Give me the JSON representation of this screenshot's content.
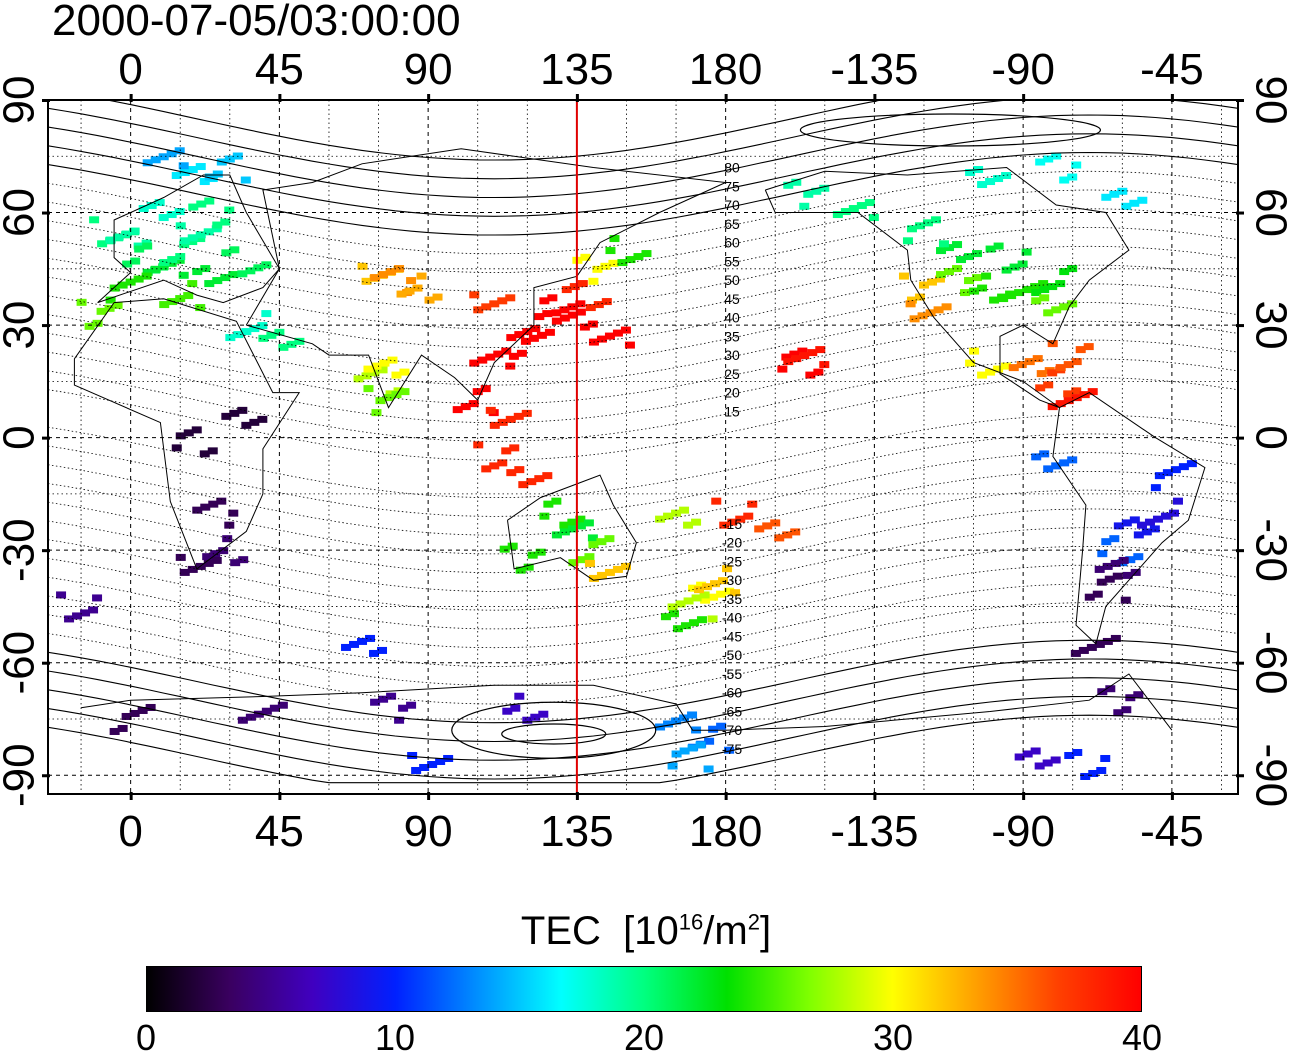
{
  "timestamp": "2000-07-05/03:00:00",
  "map": {
    "top_lon_labels": [
      "0",
      "45",
      "90",
      "135",
      "180",
      "-135",
      "-90",
      "-45"
    ],
    "bottom_lon_labels": [
      "0",
      "45",
      "90",
      "135",
      "180",
      "-135",
      "-90",
      "-45"
    ],
    "left_lat_labels": [
      "90",
      "60",
      "30",
      "0",
      "-30",
      "-60",
      "-90"
    ],
    "right_lat_labels": [
      "90",
      "60",
      "30",
      "0",
      "-30",
      "-60",
      "-90"
    ],
    "meridian_marker_lon": 135,
    "marker_color": "#e00000",
    "contour_labels_north": [
      "80",
      "75",
      "70",
      "65",
      "60",
      "55",
      "50",
      "45",
      "40",
      "35",
      "30",
      "25",
      "20",
      "15"
    ],
    "contour_labels_south": [
      "-15",
      "-20",
      "-25",
      "-30",
      "-35",
      "-40",
      "-45",
      "-50",
      "-55",
      "-60",
      "-65",
      "-70",
      "-75"
    ]
  },
  "colorbar": {
    "title": "TEC",
    "unit_prefix": "[10",
    "unit_exp": "16",
    "unit_mid": "/m",
    "unit_exp2": "2",
    "unit_suffix": "]",
    "min": 0,
    "max": 40,
    "tick_labels": [
      "0",
      "10",
      "20",
      "30",
      "40"
    ],
    "colors": [
      "#000000",
      "#3a0060",
      "#4000c0",
      "#0020ff",
      "#0090ff",
      "#00ffff",
      "#00ff80",
      "#00e000",
      "#80ff00",
      "#ffff00",
      "#ffa000",
      "#ff4000",
      "#ff0000"
    ]
  },
  "observations": [
    {
      "lat": 55,
      "lon": -5,
      "tec": 20
    },
    {
      "lat": 52,
      "lon": 0,
      "tec": 19
    },
    {
      "lat": 48,
      "lon": 5,
      "tec": 21
    },
    {
      "lat": 45,
      "lon": 10,
      "tec": 22
    },
    {
      "lat": 50,
      "lon": 15,
      "tec": 20
    },
    {
      "lat": 55,
      "lon": 20,
      "tec": 19
    },
    {
      "lat": 60,
      "lon": 25,
      "tec": 20
    },
    {
      "lat": 62,
      "lon": 10,
      "tec": 18
    },
    {
      "lat": 40,
      "lon": 0,
      "tec": 24
    },
    {
      "lat": 38,
      "lon": 15,
      "tec": 25
    },
    {
      "lat": 42,
      "lon": 25,
      "tec": 22
    },
    {
      "lat": 47,
      "lon": 35,
      "tec": 21
    },
    {
      "lat": 70,
      "lon": 20,
      "tec": 16
    },
    {
      "lat": 72,
      "lon": 30,
      "tec": 15
    },
    {
      "lat": 75,
      "lon": 10,
      "tec": 14
    },
    {
      "lat": 33,
      "lon": -10,
      "tec": 26
    },
    {
      "lat": 45,
      "lon": 75,
      "tec": 32
    },
    {
      "lat": 42,
      "lon": 80,
      "tec": 34
    },
    {
      "lat": 40,
      "lon": 88,
      "tec": 33
    },
    {
      "lat": 35,
      "lon": 110,
      "tec": 37
    },
    {
      "lat": 30,
      "lon": 120,
      "tec": 40
    },
    {
      "lat": 35,
      "lon": 130,
      "tec": 40
    },
    {
      "lat": 38,
      "lon": 138,
      "tec": 38
    },
    {
      "lat": 32,
      "lon": 135,
      "tec": 40
    },
    {
      "lat": 25,
      "lon": 122,
      "tec": 40
    },
    {
      "lat": 28,
      "lon": 145,
      "tec": 40
    },
    {
      "lat": 45,
      "lon": 140,
      "tec": 30
    },
    {
      "lat": 50,
      "lon": 150,
      "tec": 24
    },
    {
      "lat": 20,
      "lon": 110,
      "tec": 40
    },
    {
      "lat": 10,
      "lon": 105,
      "tec": 40
    },
    {
      "lat": 5,
      "lon": 115,
      "tec": 38
    },
    {
      "lat": -5,
      "lon": 110,
      "tec": 38
    },
    {
      "lat": -10,
      "lon": 120,
      "tec": 38
    },
    {
      "lat": 15,
      "lon": 75,
      "tec": 28
    },
    {
      "lat": 20,
      "lon": 78,
      "tec": 30
    },
    {
      "lat": 10,
      "lon": 78,
      "tec": 26
    },
    {
      "lat": 30,
      "lon": 35,
      "tec": 18
    },
    {
      "lat": 25,
      "lon": 45,
      "tec": 20
    },
    {
      "lat": -20,
      "lon": 130,
      "tec": 24
    },
    {
      "lat": -25,
      "lon": 135,
      "tec": 22
    },
    {
      "lat": -30,
      "lon": 140,
      "tec": 26
    },
    {
      "lat": -35,
      "lon": 145,
      "tec": 32
    },
    {
      "lat": -32,
      "lon": 118,
      "tec": 24
    },
    {
      "lat": -40,
      "lon": 175,
      "tec": 30
    },
    {
      "lat": -45,
      "lon": 170,
      "tec": 28
    },
    {
      "lat": -38,
      "lon": 178,
      "tec": 32
    },
    {
      "lat": -50,
      "lon": 168,
      "tec": 24
    },
    {
      "lat": -20,
      "lon": -178,
      "tec": 38
    },
    {
      "lat": -25,
      "lon": -165,
      "tec": 36
    },
    {
      "lat": 20,
      "lon": -158,
      "tec": 40
    },
    {
      "lat": 22,
      "lon": -155,
      "tec": 39
    },
    {
      "lat": 40,
      "lon": -120,
      "tec": 32
    },
    {
      "lat": 35,
      "lon": -118,
      "tec": 34
    },
    {
      "lat": 42,
      "lon": -110,
      "tec": 26
    },
    {
      "lat": 40,
      "lon": -100,
      "tec": 24
    },
    {
      "lat": 38,
      "lon": -90,
      "tec": 24
    },
    {
      "lat": 42,
      "lon": -80,
      "tec": 23
    },
    {
      "lat": 35,
      "lon": -80,
      "tec": 26
    },
    {
      "lat": 48,
      "lon": -95,
      "tec": 22
    },
    {
      "lat": 50,
      "lon": -110,
      "tec": 22
    },
    {
      "lat": 55,
      "lon": -120,
      "tec": 20
    },
    {
      "lat": 62,
      "lon": -140,
      "tec": 20
    },
    {
      "lat": 65,
      "lon": -155,
      "tec": 19
    },
    {
      "lat": 20,
      "lon": -100,
      "tec": 30
    },
    {
      "lat": 18,
      "lon": -88,
      "tec": 35
    },
    {
      "lat": 15,
      "lon": -80,
      "tec": 37
    },
    {
      "lat": 10,
      "lon": -75,
      "tec": 39
    },
    {
      "lat": 22,
      "lon": -75,
      "tec": 36
    },
    {
      "lat": 70,
      "lon": -100,
      "tec": 18
    },
    {
      "lat": 72,
      "lon": -80,
      "tec": 17
    },
    {
      "lat": 65,
      "lon": -60,
      "tec": 16
    },
    {
      "lat": -10,
      "lon": -45,
      "tec": 10
    },
    {
      "lat": -20,
      "lon": -48,
      "tec": 8
    },
    {
      "lat": -25,
      "lon": -55,
      "tec": 9
    },
    {
      "lat": -30,
      "lon": -60,
      "tec": 12
    },
    {
      "lat": -35,
      "lon": -62,
      "tec": 4
    },
    {
      "lat": -40,
      "lon": -65,
      "tec": 3
    },
    {
      "lat": -55,
      "lon": -68,
      "tec": 3
    },
    {
      "lat": -70,
      "lon": -60,
      "tec": 4
    },
    {
      "lat": -5,
      "lon": -80,
      "tec": 12
    },
    {
      "lat": -20,
      "lon": 25,
      "tec": 3
    },
    {
      "lat": -30,
      "lon": 28,
      "tec": 4
    },
    {
      "lat": -35,
      "lon": 20,
      "tec": 3
    },
    {
      "lat": -45,
      "lon": -15,
      "tec": 5
    },
    {
      "lat": 5,
      "lon": 35,
      "tec": 2
    },
    {
      "lat": -1,
      "lon": 20,
      "tec": 2
    },
    {
      "lat": -55,
      "lon": 70,
      "tec": 10
    },
    {
      "lat": -75,
      "lon": 0,
      "tec": 3
    },
    {
      "lat": -72,
      "lon": 40,
      "tec": 4
    },
    {
      "lat": -72,
      "lon": 80,
      "tec": 5
    },
    {
      "lat": -72,
      "lon": 120,
      "tec": 7
    },
    {
      "lat": -77,
      "lon": 165,
      "tec": 13
    },
    {
      "lat": -80,
      "lon": 175,
      "tec": 12
    },
    {
      "lat": -87,
      "lon": 90,
      "tec": 10
    },
    {
      "lat": -87,
      "lon": -70,
      "tec": 10
    },
    {
      "lat": -85,
      "lon": -85,
      "tec": 7
    },
    {
      "lat": -85,
      "lon": 170,
      "tec": 14
    },
    {
      "lat": -20,
      "lon": 165,
      "tec": 28
    }
  ]
}
